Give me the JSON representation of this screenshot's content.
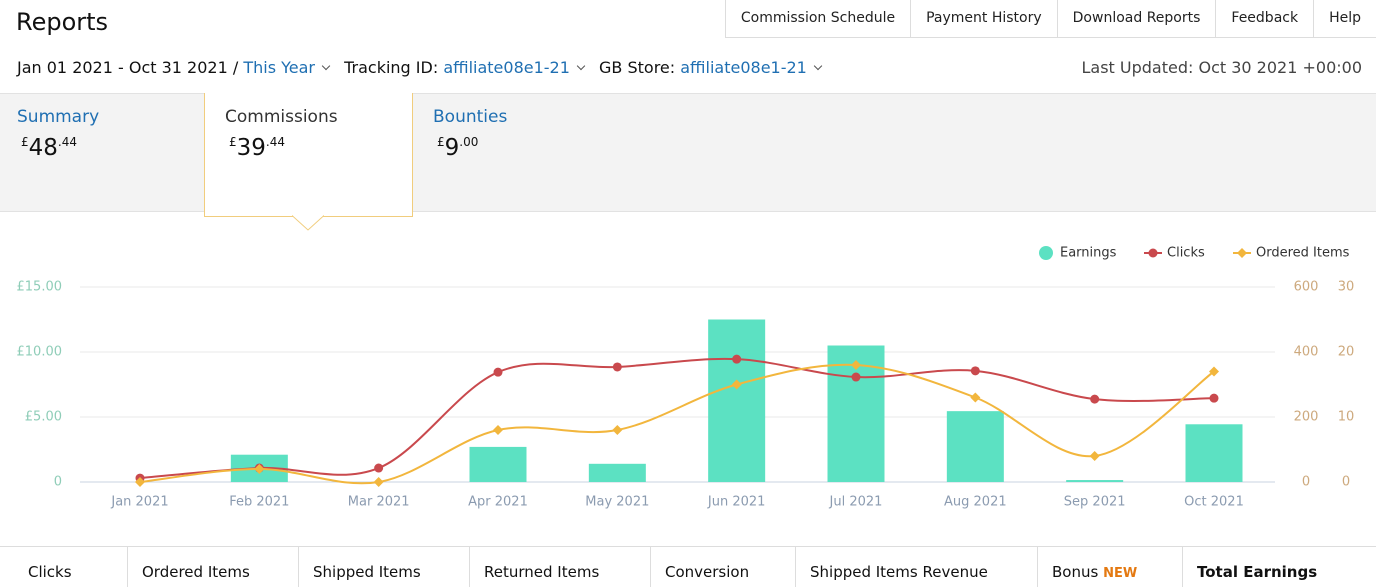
{
  "header": {
    "title": "Reports",
    "nav": [
      "Commission Schedule",
      "Payment History",
      "Download Reports",
      "Feedback",
      "Help"
    ]
  },
  "filters": {
    "date_range": "Jan 01 2021 - Oct 31 2021 /",
    "period": "This Year",
    "tracking_label": "Tracking ID:",
    "tracking_id": "affiliate08e1-21",
    "store_label": "GB Store:",
    "store_id": "affiliate08e1-21",
    "last_updated": "Last Updated: Oct 30 2021 +00:00"
  },
  "summary_tabs": [
    {
      "label": "Summary",
      "currency": "£",
      "whole": "48",
      "fraction": ".44"
    },
    {
      "label": "Commissions",
      "currency": "£",
      "whole": "39",
      "fraction": ".44"
    },
    {
      "label": "Bounties",
      "currency": "£",
      "whole": "9",
      "fraction": ".00"
    }
  ],
  "chart_data": {
    "type": "combo",
    "categories": [
      "Jan 2021",
      "Feb 2021",
      "Mar 2021",
      "Apr 2021",
      "May 2021",
      "Jun 2021",
      "Jul 2021",
      "Aug 2021",
      "Sep 2021",
      "Oct 2021"
    ],
    "series": [
      {
        "name": "Earnings",
        "type": "bar",
        "axis": "y",
        "color": "#5ce1c2",
        "values": [
          0,
          2.1,
          0,
          2.7,
          1.4,
          12.5,
          10.5,
          5.45,
          0.15,
          4.44
        ]
      },
      {
        "name": "Clicks",
        "type": "line",
        "axis": "y2",
        "color": "#c9494d",
        "values": [
          12,
          43,
          43,
          338,
          354,
          378,
          323,
          342,
          255,
          258
        ]
      },
      {
        "name": "Ordered Items",
        "type": "line",
        "axis": "y3",
        "color": "#f2b63d",
        "values": [
          0,
          2,
          0,
          8,
          8,
          15,
          18,
          13,
          4,
          17
        ]
      }
    ],
    "ylim": [
      0,
      15
    ],
    "yticks": [
      0,
      {
        "value": 5,
        "label": "£5.00"
      },
      {
        "value": 10,
        "label": "£10.00"
      },
      {
        "value": 15,
        "label": "£15.00"
      }
    ],
    "y2lim": [
      0,
      600
    ],
    "y2ticks": [
      0,
      200,
      400,
      600
    ],
    "y3lim": [
      0,
      30
    ],
    "y3ticks": [
      0,
      10,
      20,
      30
    ],
    "grid": true,
    "legend": "top-right"
  },
  "table": {
    "columns": [
      "Clicks",
      "Ordered Items",
      "Shipped Items",
      "Returned Items",
      "Conversion",
      "Shipped Items Revenue",
      "Bonus",
      "Total Earnings"
    ],
    "bonus_badge": "NEW"
  }
}
